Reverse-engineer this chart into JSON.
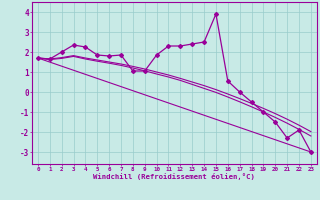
{
  "xlabel": "Windchill (Refroidissement éolien,°C)",
  "bg_color": "#c8eae6",
  "line_color": "#990099",
  "grid_color": "#99cccc",
  "x_ticks": [
    0,
    1,
    2,
    3,
    4,
    5,
    6,
    7,
    8,
    9,
    10,
    11,
    12,
    13,
    14,
    15,
    16,
    17,
    18,
    19,
    20,
    21,
    22,
    23
  ],
  "x_tick_labels": [
    "0",
    "1",
    "2",
    "3",
    "4",
    "5",
    "6",
    "7",
    "8",
    "9",
    "10",
    "11",
    "12",
    "13",
    "14",
    "15",
    "16",
    "17",
    "18",
    "19",
    "20",
    "21",
    "22",
    "23"
  ],
  "y_ticks": [
    -3,
    -2,
    -1,
    0,
    1,
    2,
    3,
    4
  ],
  "ylim": [
    -3.6,
    4.5
  ],
  "xlim": [
    -0.5,
    23.5
  ],
  "curve1_x": [
    0,
    1,
    2,
    3,
    4,
    5,
    6,
    7,
    8,
    9,
    10,
    11,
    12,
    13,
    14,
    15,
    16,
    17,
    18,
    19,
    20,
    21,
    22,
    23
  ],
  "curve1_y": [
    1.7,
    1.65,
    2.0,
    2.35,
    2.25,
    1.85,
    1.8,
    1.85,
    1.05,
    1.05,
    1.85,
    2.3,
    2.3,
    2.4,
    2.5,
    3.9,
    0.55,
    0.0,
    -0.5,
    -1.0,
    -1.5,
    -2.3,
    -1.9,
    -3.0
  ],
  "curve2_x": [
    0,
    23
  ],
  "curve2_y": [
    1.7,
    -3.0
  ],
  "curve3_x": [
    0,
    1,
    2,
    3,
    4,
    5,
    6,
    7,
    8,
    9,
    10,
    11,
    12,
    13,
    14,
    15,
    16,
    17,
    18,
    19,
    20,
    21,
    22,
    23
  ],
  "curve3_y": [
    1.7,
    1.65,
    1.72,
    1.82,
    1.7,
    1.6,
    1.5,
    1.4,
    1.28,
    1.15,
    1.0,
    0.85,
    0.68,
    0.5,
    0.32,
    0.12,
    -0.1,
    -0.33,
    -0.57,
    -0.82,
    -1.08,
    -1.36,
    -1.66,
    -1.98
  ],
  "curve4_x": [
    0,
    1,
    2,
    3,
    4,
    5,
    6,
    7,
    8,
    9,
    10,
    11,
    12,
    13,
    14,
    15,
    16,
    17,
    18,
    19,
    20,
    21,
    22,
    23
  ],
  "curve4_y": [
    1.7,
    1.62,
    1.68,
    1.78,
    1.65,
    1.54,
    1.44,
    1.33,
    1.2,
    1.06,
    0.9,
    0.75,
    0.58,
    0.38,
    0.18,
    -0.02,
    -0.25,
    -0.49,
    -0.74,
    -1.0,
    -1.27,
    -1.56,
    -1.87,
    -2.2
  ]
}
